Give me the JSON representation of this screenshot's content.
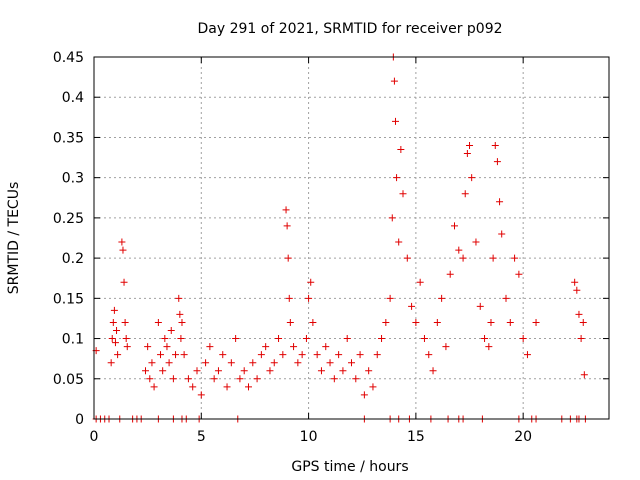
{
  "chart_data": {
    "type": "scatter",
    "title": "Day 291 of 2021, SRMTID for receiver p092",
    "xlabel": "GPS time / hours",
    "ylabel": "SRMTID / TECUs",
    "xlim": [
      0,
      24
    ],
    "ylim": [
      0,
      0.45
    ],
    "xticks": [
      0,
      5,
      10,
      15,
      20
    ],
    "xtick_labels": [
      "0",
      "5",
      "10",
      "15",
      "20"
    ],
    "yticks": [
      0,
      0.05,
      0.1,
      0.15,
      0.2,
      0.25,
      0.3,
      0.35,
      0.4,
      0.45
    ],
    "ytick_labels": [
      "0",
      "0.05",
      "0.1",
      "0.15",
      "0.2",
      "0.25",
      "0.3",
      "0.35",
      "0.4",
      "0.45"
    ],
    "grid": true,
    "marker": "+",
    "series_color": "#e00000",
    "series": [
      {
        "name": "SRMTID",
        "x": [
          0.1,
          0.8,
          0.85,
          0.9,
          0.95,
          1.0,
          1.05,
          1.1,
          1.3,
          1.35,
          1.4,
          1.45,
          1.5,
          1.55,
          2.4,
          2.5,
          2.6,
          2.7,
          2.8,
          3.0,
          3.1,
          3.2,
          3.3,
          3.4,
          3.5,
          3.6,
          3.7,
          3.8,
          3.95,
          4.0,
          4.05,
          4.1,
          4.2,
          4.4,
          4.6,
          4.8,
          5.0,
          5.2,
          5.4,
          5.6,
          5.8,
          6.0,
          6.2,
          6.4,
          6.6,
          6.8,
          7.0,
          7.2,
          7.4,
          7.6,
          7.8,
          8.0,
          8.2,
          8.4,
          8.6,
          8.8,
          8.95,
          9.0,
          9.05,
          9.1,
          9.15,
          9.3,
          9.5,
          9.7,
          9.9,
          10.0,
          10.1,
          10.2,
          10.4,
          10.6,
          10.8,
          11.0,
          11.2,
          11.4,
          11.6,
          11.8,
          12.0,
          12.2,
          12.4,
          12.6,
          12.8,
          13.0,
          13.2,
          13.4,
          13.6,
          13.8,
          13.9,
          13.95,
          14.0,
          14.05,
          14.1,
          14.2,
          14.3,
          14.4,
          14.6,
          14.8,
          15.0,
          15.2,
          15.4,
          15.6,
          15.8,
          16.0,
          16.2,
          16.4,
          16.6,
          16.8,
          17.0,
          17.2,
          17.3,
          17.4,
          17.5,
          17.6,
          17.8,
          18.0,
          18.2,
          18.4,
          18.5,
          18.6,
          18.7,
          18.8,
          18.9,
          19.0,
          19.2,
          19.4,
          19.6,
          19.8,
          20.0,
          20.2,
          20.6,
          22.4,
          22.5,
          22.6,
          22.7,
          22.8,
          22.85
        ],
        "y": [
          0.085,
          0.07,
          0.1,
          0.12,
          0.135,
          0.095,
          0.11,
          0.08,
          0.22,
          0.21,
          0.17,
          0.12,
          0.1,
          0.09,
          0.06,
          0.09,
          0.05,
          0.07,
          0.04,
          0.12,
          0.08,
          0.06,
          0.1,
          0.09,
          0.07,
          0.11,
          0.05,
          0.08,
          0.15,
          0.13,
          0.1,
          0.12,
          0.08,
          0.05,
          0.04,
          0.06,
          0.03,
          0.07,
          0.09,
          0.05,
          0.06,
          0.08,
          0.04,
          0.07,
          0.1,
          0.05,
          0.06,
          0.04,
          0.07,
          0.05,
          0.08,
          0.09,
          0.06,
          0.07,
          0.1,
          0.08,
          0.26,
          0.24,
          0.2,
          0.15,
          0.12,
          0.09,
          0.07,
          0.08,
          0.1,
          0.15,
          0.17,
          0.12,
          0.08,
          0.06,
          0.09,
          0.07,
          0.05,
          0.08,
          0.06,
          0.1,
          0.07,
          0.05,
          0.08,
          0.03,
          0.06,
          0.04,
          0.08,
          0.1,
          0.12,
          0.15,
          0.25,
          0.45,
          0.42,
          0.37,
          0.3,
          0.22,
          0.335,
          0.28,
          0.2,
          0.14,
          0.12,
          0.17,
          0.1,
          0.08,
          0.06,
          0.12,
          0.15,
          0.09,
          0.18,
          0.24,
          0.21,
          0.2,
          0.28,
          0.33,
          0.34,
          0.3,
          0.22,
          0.14,
          0.1,
          0.09,
          0.12,
          0.2,
          0.34,
          0.32,
          0.27,
          0.23,
          0.15,
          0.12,
          0.2,
          0.18,
          0.1,
          0.08,
          0.12,
          0.17,
          0.16,
          0.13,
          0.1,
          0.12,
          0.055
        ],
        "zero_x": [
          0.1,
          0.3,
          0.5,
          0.7,
          1.2,
          1.8,
          2.0,
          2.2,
          3.0,
          3.7,
          4.1,
          4.3,
          4.9,
          6.7,
          12.6,
          13.8,
          14.2,
          14.7,
          15.7,
          16.5,
          17.0,
          17.2,
          18.1,
          19.8,
          20.4,
          20.6,
          21.8,
          22.2,
          22.5,
          22.6,
          22.9
        ]
      }
    ]
  }
}
